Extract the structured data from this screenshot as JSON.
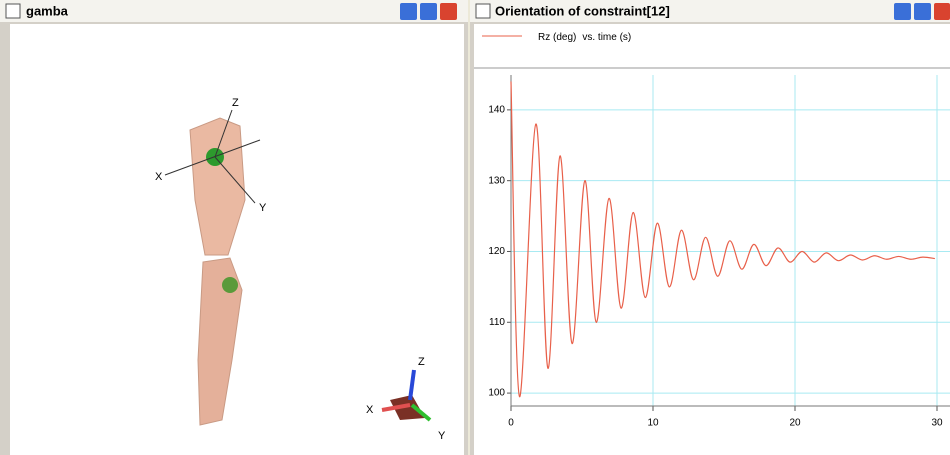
{
  "windows": [
    {
      "title": "gamba",
      "view_labels": {
        "x": "X",
        "y": "Y",
        "z": "Z",
        "triad_x": "X",
        "triad_y": "Y",
        "triad_z": "Z"
      }
    },
    {
      "title": "Orientation of constraint[12]"
    }
  ],
  "chart_data": {
    "type": "line",
    "x_label": "vs. time (s)",
    "x": [
      0,
      0.6,
      1.75,
      2.6,
      3.45,
      4.3,
      5.2,
      6.0,
      6.9,
      7.75,
      8.6,
      9.45,
      10.3,
      11.15,
      12.0,
      12.85,
      13.7,
      14.55,
      15.4,
      16.25,
      17.1,
      17.95,
      18.8,
      19.65,
      20.5,
      21.35,
      22.2,
      23.05,
      23.9,
      24.75,
      25.6,
      26.45,
      27.3,
      28.15,
      29.0,
      29.85
    ],
    "series": [
      {
        "name": "Rz (deg)",
        "color": "#e8604a",
        "values": [
          144,
          99.5,
          138,
          103.5,
          133.5,
          107,
          130,
          110,
          127.5,
          112,
          125.5,
          113.5,
          124,
          115,
          123,
          116,
          122,
          116.5,
          121.5,
          117.5,
          121,
          118,
          120.5,
          118.5,
          120,
          118.5,
          119.8,
          118.7,
          119.5,
          118.8,
          119.4,
          118.9,
          119.3,
          118.9,
          119.2,
          119.0
        ]
      }
    ],
    "xlim": [
      0,
      30
    ],
    "ylim": [
      98.6,
      144.5
    ],
    "xticks": [
      0,
      10,
      20,
      30
    ],
    "yticks": [
      100,
      110,
      120,
      130,
      140
    ],
    "grid": true,
    "grid_color": "#a8eaf2"
  }
}
